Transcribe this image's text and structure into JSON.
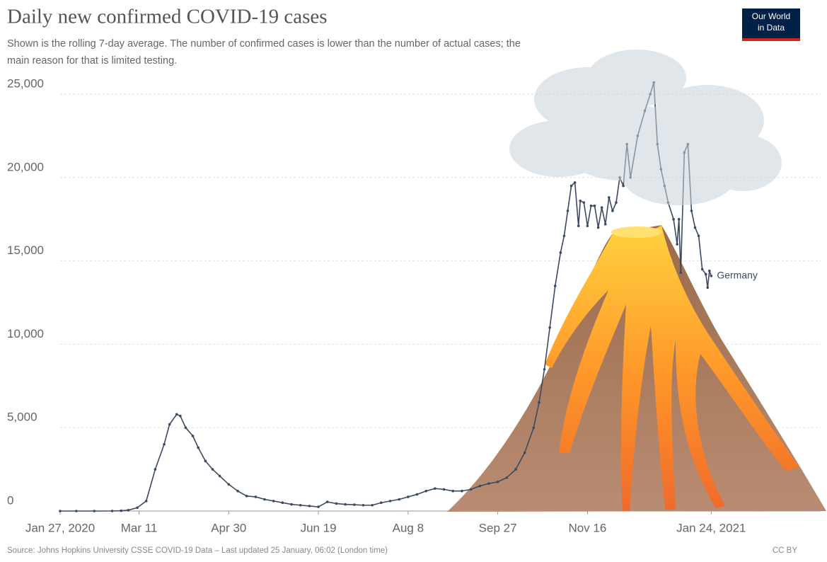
{
  "chart_data": {
    "type": "line",
    "title": "Daily new confirmed COVID-19 cases",
    "subtitle": [
      "Shown is the rolling 7-day average. The number of confirmed cases is lower than the number of actual cases; the",
      "main reason for that is limited testing."
    ],
    "logo": [
      "Our World",
      "in Data"
    ],
    "source": "Source: Johns Hopkins University CSSE COVID-19 Data – Last updated 25 January, 06:02 (London time)",
    "license": "CC BY",
    "x": [
      "2020-01-27",
      "2020-02-05",
      "2020-02-15",
      "2020-02-25",
      "2020-03-01",
      "2020-03-05",
      "2020-03-10",
      "2020-03-15",
      "2020-03-20",
      "2020-03-25",
      "2020-03-28",
      "2020-04-01",
      "2020-04-03",
      "2020-04-06",
      "2020-04-10",
      "2020-04-13",
      "2020-04-17",
      "2020-04-21",
      "2020-04-25",
      "2020-04-30",
      "2020-05-05",
      "2020-05-10",
      "2020-05-15",
      "2020-05-20",
      "2020-05-25",
      "2020-05-30",
      "2020-06-04",
      "2020-06-09",
      "2020-06-14",
      "2020-06-19",
      "2020-06-24",
      "2020-06-29",
      "2020-07-04",
      "2020-07-09",
      "2020-07-14",
      "2020-07-19",
      "2020-07-24",
      "2020-07-29",
      "2020-08-03",
      "2020-08-08",
      "2020-08-13",
      "2020-08-18",
      "2020-08-23",
      "2020-08-28",
      "2020-09-02",
      "2020-09-07",
      "2020-09-12",
      "2020-09-17",
      "2020-09-22",
      "2020-09-27",
      "2020-10-02",
      "2020-10-07",
      "2020-10-12",
      "2020-10-17",
      "2020-10-20",
      "2020-10-23",
      "2020-10-26",
      "2020-10-29",
      "2020-11-01",
      "2020-11-03",
      "2020-11-05",
      "2020-11-07",
      "2020-11-09",
      "2020-11-11",
      "2020-11-12",
      "2020-11-14",
      "2020-11-16",
      "2020-11-18",
      "2020-11-20",
      "2020-11-22",
      "2020-11-24",
      "2020-11-26",
      "2020-11-28",
      "2020-11-30",
      "2020-12-02",
      "2020-12-04",
      "2020-12-06",
      "2020-12-08",
      "2020-12-10",
      "2020-12-14",
      "2020-12-18",
      "2020-12-21",
      "2020-12-23",
      "2020-12-25",
      "2020-12-27",
      "2020-12-29",
      "2020-12-31",
      "2021-01-03",
      "2021-01-05",
      "2021-01-06",
      "2021-01-07",
      "2021-01-09",
      "2021-01-11",
      "2021-01-13",
      "2021-01-15",
      "2021-01-17",
      "2021-01-19",
      "2021-01-21",
      "2021-01-22",
      "2021-01-23",
      "2021-01-24"
    ],
    "series": [
      {
        "name": "Germany",
        "color": "#3c4a60",
        "values": [
          0,
          0,
          0,
          5,
          20,
          50,
          200,
          600,
          2500,
          4000,
          5200,
          5800,
          5700,
          5000,
          4500,
          3800,
          3000,
          2500,
          2100,
          1600,
          1200,
          900,
          850,
          700,
          600,
          500,
          400,
          350,
          300,
          250,
          550,
          450,
          400,
          380,
          350,
          350,
          500,
          600,
          700,
          850,
          1000,
          1200,
          1350,
          1300,
          1200,
          1200,
          1300,
          1500,
          1650,
          1750,
          2000,
          2500,
          3500,
          5000,
          6500,
          8500,
          11000,
          13500,
          15500,
          16500,
          18000,
          19500,
          19700,
          17100,
          18600,
          18500,
          17100,
          18300,
          18300,
          17000,
          18200,
          17200,
          18800,
          18000,
          18500,
          20000,
          19500,
          22000,
          20000,
          22500,
          24000,
          25000,
          25700,
          22000,
          20500,
          19500,
          18500,
          17500,
          16000,
          17500,
          14300,
          21500,
          22000,
          18000,
          17000,
          16500,
          14500,
          14200,
          13400,
          14400,
          14100
        ]
      }
    ],
    "xlim": [
      "2020-01-27",
      "2021-03-26"
    ],
    "xticks": [
      {
        "value": "2020-01-27",
        "label": "Jan 27, 2020"
      },
      {
        "value": "2020-03-11",
        "label": "Mar 11"
      },
      {
        "value": "2020-04-30",
        "label": "Apr 30"
      },
      {
        "value": "2020-06-19",
        "label": "Jun 19"
      },
      {
        "value": "2020-08-08",
        "label": "Aug 8"
      },
      {
        "value": "2020-09-27",
        "label": "Sep 27"
      },
      {
        "value": "2020-11-16",
        "label": "Nov 16"
      },
      {
        "value": "2021-01-24",
        "label": "Jan 24, 2021"
      }
    ],
    "ylim": [
      0,
      25000
    ],
    "yticks": [
      0,
      {
        "value": 5000,
        "label": "5,000"
      },
      {
        "value": 10000,
        "label": "10,000"
      },
      {
        "value": 15000,
        "label": "15,000"
      },
      {
        "value": 20000,
        "label": "20,000"
      },
      {
        "value": 25000,
        "label": "25,000"
      }
    ],
    "grid": true
  }
}
